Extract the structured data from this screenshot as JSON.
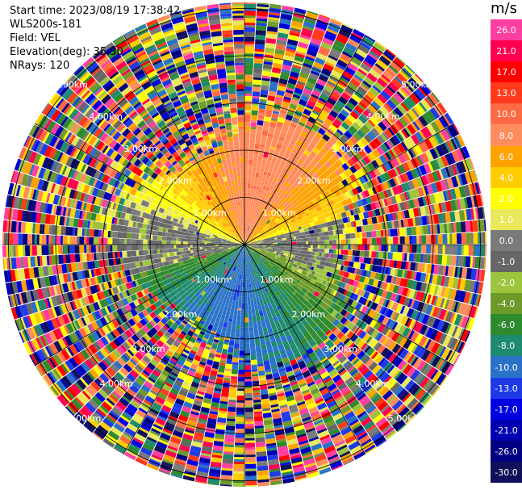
{
  "header": {
    "start_time": "Start time: 2023/08/19 17:38:42",
    "instrument": "WLS200s-181",
    "field": "Field: VEL",
    "elevation": "Elevation(deg): 35.30",
    "nrays": "NRays: 120"
  },
  "colorbar": {
    "unit": "m/s",
    "ticks": [
      "26.0",
      "21.0",
      "17.0",
      "13.0",
      "10.0",
      "8.0",
      "6.0",
      "4.0",
      "2.0",
      "1.0",
      "0.0",
      "-1.0",
      "-2.0",
      "-4.0",
      "-6.0",
      "-8.0",
      "-10.0",
      "-13.0",
      "-17.0",
      "-21.0",
      "-26.0",
      "-30.0"
    ],
    "colors": [
      "#ff3fa0",
      "#ff0050",
      "#ff0000",
      "#ff3a1a",
      "#ff6a44",
      "#ff8c5c",
      "#ffa200",
      "#ffcc00",
      "#ffff00",
      "#e8e85a",
      "#7a7a7a",
      "#666666",
      "#9cc43c",
      "#6e9a2a",
      "#2e8a2e",
      "#1e8a6e",
      "#2a72c8",
      "#1e3ae6",
      "#0000e0",
      "#0000b0",
      "#000080",
      "#10105a"
    ]
  },
  "chart_data": {
    "type": "ppi",
    "field": "VEL",
    "unit": "m/s",
    "elevation_deg": 35.3,
    "nrays": 120,
    "range_rings_km": [
      1.0,
      2.0,
      3.0,
      4.0,
      5.0
    ],
    "ring_labels": [
      "1.00km",
      "2.00km",
      "3.00km",
      "4.00km",
      "5.00km"
    ],
    "label_positions": [
      "NW",
      "NE",
      "SW",
      "SE"
    ],
    "pattern": {
      "near_field": "positive velocities (orange/yellow, 2 to 10 m/s) toward the north half; negative velocities (green, -2 to -8 m/s) toward the south half",
      "far_field": "noise, random colors across full scale"
    }
  }
}
